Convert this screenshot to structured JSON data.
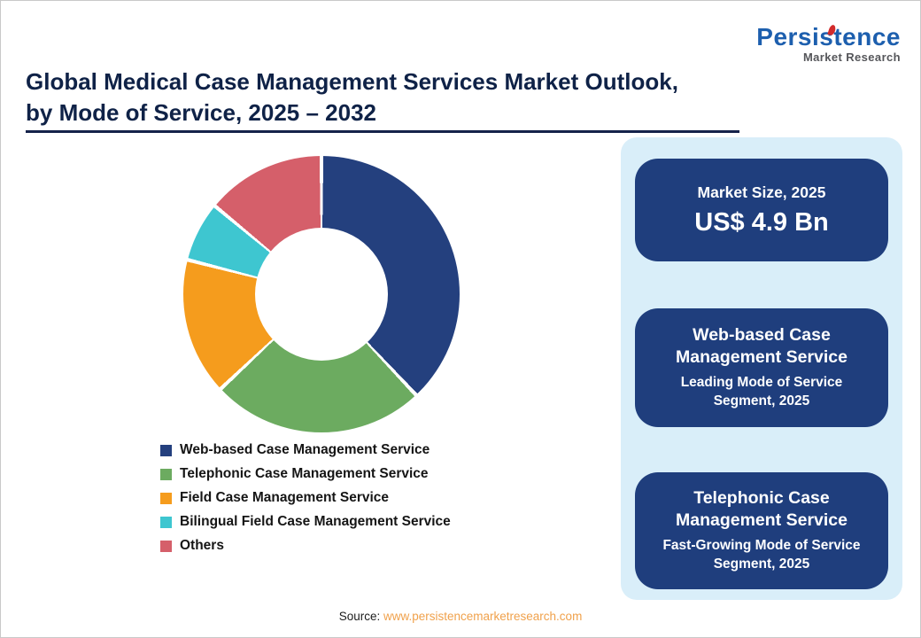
{
  "logo": {
    "title": "Persistence",
    "subtitle": "Market Research"
  },
  "header": {
    "title_line1": "Global Medical Case Management Services Market Outlook,",
    "title_line2": "by Mode of Service, 2025 – 2032"
  },
  "chart_data": {
    "type": "pie",
    "donut": true,
    "title": "Global Medical Case Management Services Market Outlook, by Mode of Service, 2025 – 2032",
    "start_angle_deg": 0,
    "direction": "clockwise",
    "categories": [
      "Web-based Case Management Service",
      "Telephonic Case Management Service",
      "Field Case Management Service",
      "Bilingual Field Case Management Service",
      "Others"
    ],
    "values": [
      38,
      25,
      16,
      7,
      14
    ],
    "unit": "% share (estimated from segment angles)",
    "colors": [
      "#24407e",
      "#6cab60",
      "#f59c1d",
      "#3ec6d0",
      "#d55f6a"
    ],
    "legend_position": "bottom-left"
  },
  "panel": {
    "cards": [
      {
        "title": "Market Size, 2025",
        "value": "US$ 4.9 Bn"
      },
      {
        "title": "Web-based Case Management Service",
        "subtitle": "Leading Mode of Service Segment, 2025"
      },
      {
        "title": "Telephonic Case Management Service",
        "subtitle": "Fast-Growing Mode of Service Segment, 2025"
      }
    ]
  },
  "source": {
    "label": "Source:",
    "link": "www.persistencemarketresearch.com"
  },
  "colors": {
    "accent_navy": "#1f3e7d",
    "panel_bg": "#d9eef9",
    "title_color": "#0f2247",
    "link_orange": "#f0a14b",
    "logo_blue": "#1d5fae",
    "logo_red": "#d22b2b"
  }
}
